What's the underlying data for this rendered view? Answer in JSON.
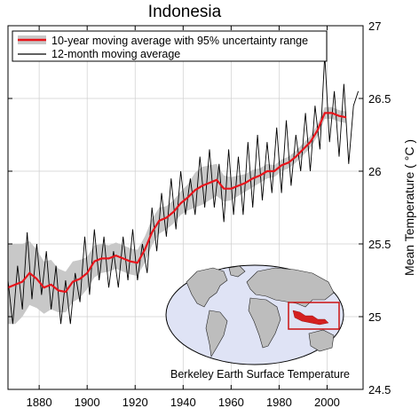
{
  "chart_data": {
    "type": "line",
    "title": "Indonesia",
    "ylabel": "Mean Temperature ( °C )",
    "xlabel": "",
    "xlim": [
      1867,
      2015
    ],
    "ylim": [
      24.5,
      27
    ],
    "x_ticks": [
      1880,
      1900,
      1920,
      1940,
      1960,
      1980,
      2000
    ],
    "y_ticks": [
      24.5,
      25,
      25.5,
      26,
      26.5,
      27
    ],
    "y_tick_labels": [
      "24.5",
      "25",
      "25.5",
      "26",
      "26.5",
      "27"
    ],
    "grid": true,
    "legend_position": "top-left",
    "annotation": "Berkeley Earth Surface Temperature",
    "colors": {
      "moving_avg_10yr": "#e8141b",
      "uncertainty_band": "#c8c8c8",
      "moving_avg_12mo": "#000000",
      "inset_highlight": "#cc1111",
      "inset_ocean": "#dfe3f5"
    },
    "series": [
      {
        "name": "10-year moving average with 95% uncertainty range",
        "x": [
          1867,
          1870,
          1873,
          1876,
          1879,
          1882,
          1885,
          1888,
          1891,
          1894,
          1897,
          1900,
          1903,
          1906,
          1909,
          1912,
          1915,
          1918,
          1921,
          1924,
          1927,
          1930,
          1933,
          1936,
          1939,
          1942,
          1945,
          1948,
          1951,
          1954,
          1957,
          1960,
          1963,
          1966,
          1969,
          1972,
          1975,
          1978,
          1981,
          1984,
          1987,
          1990,
          1993,
          1996,
          1999,
          2002,
          2005,
          2008
        ],
        "values": [
          25.2,
          25.22,
          25.24,
          25.3,
          25.26,
          25.2,
          25.22,
          25.18,
          25.17,
          25.24,
          25.26,
          25.3,
          25.38,
          25.4,
          25.4,
          25.42,
          25.4,
          25.38,
          25.37,
          25.46,
          25.58,
          25.66,
          25.68,
          25.72,
          25.78,
          25.82,
          25.87,
          25.9,
          25.92,
          25.94,
          25.88,
          25.88,
          25.9,
          25.92,
          25.95,
          25.97,
          26.0,
          26.0,
          26.04,
          26.06,
          26.1,
          26.15,
          26.2,
          26.28,
          26.4,
          26.4,
          26.38,
          26.37
        ],
        "lower": [
          24.95,
          24.95,
          25.0,
          25.08,
          25.06,
          25.02,
          25.05,
          25.03,
          25.03,
          25.1,
          25.13,
          25.19,
          25.27,
          25.3,
          25.31,
          25.33,
          25.31,
          25.29,
          25.28,
          25.37,
          25.49,
          25.57,
          25.6,
          25.64,
          25.7,
          25.73,
          25.75,
          25.77,
          25.8,
          25.83,
          25.79,
          25.8,
          25.83,
          25.86,
          25.89,
          25.92,
          25.95,
          25.96,
          26.0,
          26.02,
          26.06,
          26.11,
          26.16,
          26.24,
          26.36,
          26.36,
          26.34,
          26.33
        ],
        "upper": [
          25.5,
          25.5,
          25.5,
          25.52,
          25.46,
          25.38,
          25.39,
          25.33,
          25.31,
          25.38,
          25.39,
          25.41,
          25.49,
          25.5,
          25.49,
          25.51,
          25.49,
          25.47,
          25.46,
          25.55,
          25.67,
          25.75,
          25.76,
          25.8,
          25.86,
          25.91,
          25.99,
          26.03,
          26.04,
          26.05,
          25.97,
          25.96,
          25.97,
          25.98,
          26.01,
          26.02,
          26.05,
          26.04,
          26.08,
          26.1,
          26.14,
          26.19,
          26.24,
          26.32,
          26.44,
          26.44,
          26.42,
          26.41
        ]
      },
      {
        "name": "12-month moving average",
        "x": [
          1867,
          1869,
          1871,
          1873,
          1875,
          1877,
          1879,
          1881,
          1883,
          1885,
          1887,
          1889,
          1891,
          1893,
          1895,
          1897,
          1899,
          1901,
          1903,
          1905,
          1907,
          1909,
          1911,
          1913,
          1915,
          1917,
          1919,
          1921,
          1923,
          1925,
          1927,
          1929,
          1931,
          1933,
          1935,
          1937,
          1939,
          1941,
          1943,
          1945,
          1947,
          1949,
          1951,
          1953,
          1955,
          1957,
          1959,
          1961,
          1963,
          1965,
          1967,
          1969,
          1971,
          1973,
          1975,
          1977,
          1979,
          1981,
          1983,
          1985,
          1987,
          1989,
          1991,
          1993,
          1995,
          1997,
          1999,
          2001,
          2003,
          2005,
          2007,
          2009,
          2011,
          2013
        ],
        "values": [
          25.25,
          24.95,
          25.35,
          25.05,
          25.58,
          25.12,
          25.5,
          25.15,
          25.45,
          25.05,
          25.35,
          24.95,
          25.25,
          24.95,
          25.3,
          25.1,
          25.55,
          25.15,
          25.6,
          25.25,
          25.55,
          25.2,
          25.45,
          25.2,
          25.55,
          25.25,
          25.6,
          25.25,
          25.5,
          25.3,
          25.75,
          25.45,
          25.85,
          25.55,
          25.95,
          25.6,
          26.0,
          25.7,
          25.95,
          25.7,
          26.1,
          25.75,
          26.15,
          25.75,
          26.05,
          25.65,
          26.15,
          25.7,
          26.1,
          25.7,
          26.2,
          25.75,
          26.25,
          25.8,
          26.2,
          25.85,
          26.3,
          25.85,
          26.35,
          25.9,
          26.25,
          26.0,
          26.4,
          26.0,
          26.45,
          26.15,
          26.8,
          26.2,
          26.55,
          26.1,
          26.6,
          26.05,
          26.45,
          26.55
        ]
      }
    ]
  }
}
